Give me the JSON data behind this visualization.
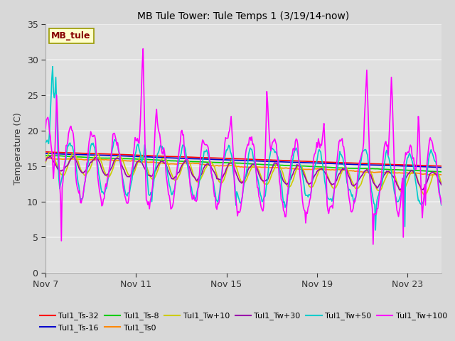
{
  "title": "MB Tule Tower: Tule Temps 1 (3/19/14-now)",
  "ylabel": "Temperature (C)",
  "ylim": [
    0,
    35
  ],
  "yticks": [
    0,
    5,
    10,
    15,
    20,
    25,
    30,
    35
  ],
  "xtick_labels": [
    "Nov 7",
    "Nov 11",
    "Nov 15",
    "Nov 19",
    "Nov 23"
  ],
  "xtick_positions": [
    0,
    4,
    8,
    12,
    16
  ],
  "num_days": 17.5,
  "fig_bg_color": "#d8d8d8",
  "plot_bg_color": "#e0e0e0",
  "grid_color": "#f0f0f0",
  "watermark_label": "MB_tule",
  "watermark_bg": "#ffffcc",
  "watermark_border": "#999900",
  "watermark_text_color": "#880000",
  "legend_entries": [
    {
      "label": "Tul1_Ts-32",
      "color": "#ff0000"
    },
    {
      "label": "Tul1_Ts-16",
      "color": "#0000cc"
    },
    {
      "label": "Tul1_Ts-8",
      "color": "#00cc00"
    },
    {
      "label": "Tul1_Ts0",
      "color": "#ff8800"
    },
    {
      "label": "Tul1_Tw+10",
      "color": "#cccc00"
    },
    {
      "label": "Tul1_Tw+30",
      "color": "#9900aa"
    },
    {
      "label": "Tul1_Tw+50",
      "color": "#00cccc"
    },
    {
      "label": "Tul1_Tw+100",
      "color": "#ff00ff"
    }
  ]
}
